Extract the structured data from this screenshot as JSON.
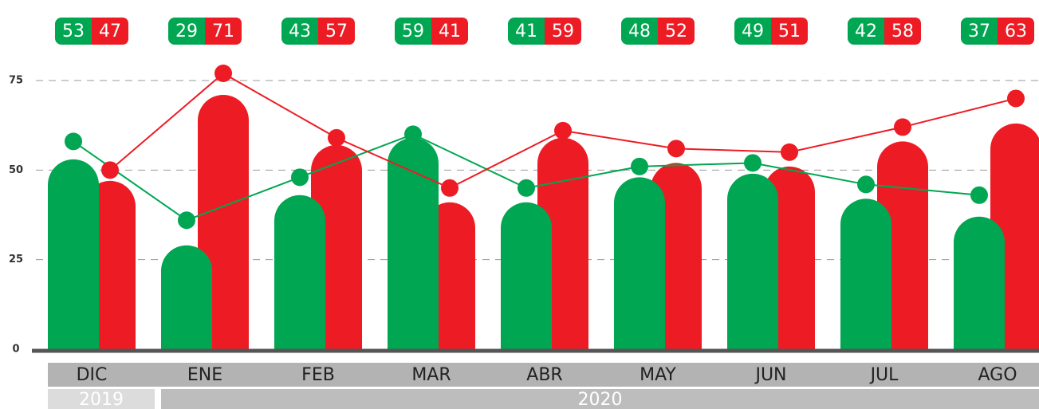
{
  "chart_data": {
    "type": "bar",
    "categories": [
      "DIC",
      "ENE",
      "FEB",
      "MAR",
      "ABR",
      "MAY",
      "JUN",
      "JUL",
      "AGO"
    ],
    "series": [
      {
        "color": "#00a651",
        "values": [
          53,
          29,
          43,
          59,
          41,
          48,
          49,
          42,
          37
        ]
      },
      {
        "color": "#ed1c24",
        "values": [
          47,
          71,
          57,
          41,
          59,
          52,
          51,
          58,
          63
        ]
      }
    ],
    "line_series": [
      {
        "color": "#00a651",
        "values": [
          58,
          36,
          48,
          60,
          45,
          51,
          52,
          46,
          43
        ]
      },
      {
        "color": "#ed1c24",
        "values": [
          50,
          77,
          59,
          45,
          61,
          56,
          55,
          62,
          70
        ]
      }
    ],
    "ylim": [
      0,
      75
    ],
    "yticks": [
      0,
      25,
      50,
      75
    ],
    "grid": true,
    "x_groups": [
      {
        "label": "2019",
        "count": 1
      },
      {
        "label": "2020",
        "count": 8
      }
    ]
  }
}
